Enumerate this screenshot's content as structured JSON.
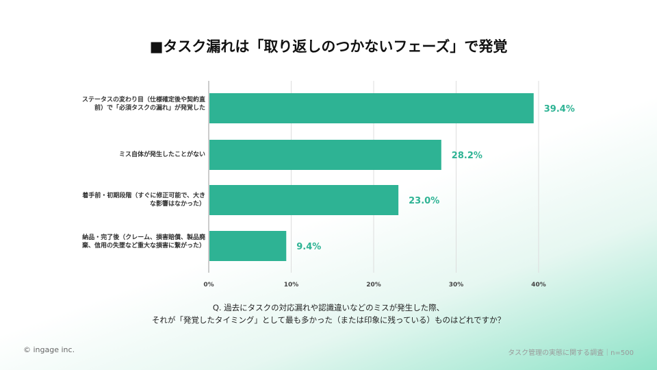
{
  "title": "■タスク漏れは「取り返しのつかないフェーズ」で発覚",
  "chart_data": {
    "type": "bar",
    "orientation": "horizontal",
    "categories": [
      "ステータスの変わり目（仕様確定後や契約直前）で「必須タスクの漏れ」が発覚した",
      "ミス自体が発生したことがない",
      "着手前・初期段階（すぐに修正可能で、大きな影響はなかった）",
      "納品・完了後（クレーム、損害賠償、製品廃棄、信用の失墜など重大な損害に繋がった）"
    ],
    "values": [
      39.4,
      28.2,
      23.0,
      9.4
    ],
    "value_labels": [
      "39.4%",
      "28.2%",
      "23.0%",
      "9.4%"
    ],
    "xlim": [
      0,
      40
    ],
    "ticks": [
      "0%",
      "10%",
      "20%",
      "30%",
      "40%"
    ],
    "grid": true,
    "bar_color": "#2eb394",
    "label_color": "#2eb394"
  },
  "question": [
    "Q. 過去にタスクの対応漏れや認識違いなどのミスが発生した際、",
    "それが「発覚したタイミング」として最も多かった（または印象に残っている）ものはどれですか？"
  ],
  "copyright": "© ingage inc.",
  "footer": "タスク管理の実態に関する調査｜n=500"
}
